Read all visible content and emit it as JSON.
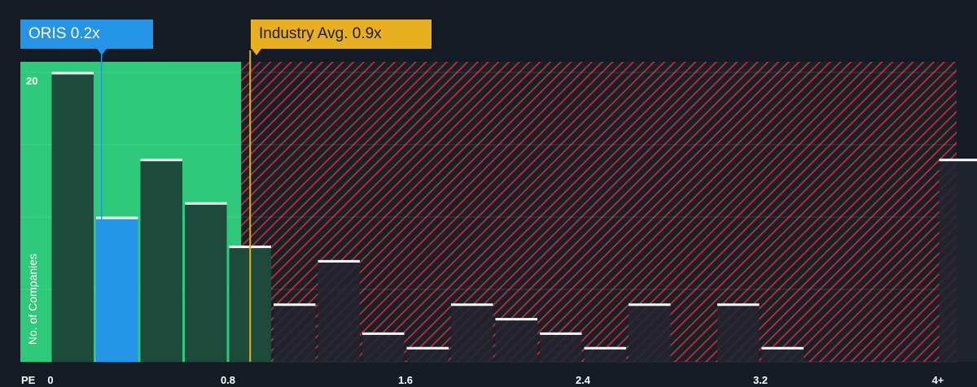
{
  "chart_data": {
    "type": "bar",
    "x_axis_title": "PE",
    "ylabel": "No. of Companies",
    "x_ticks": [
      "0",
      "0.8",
      "1.6",
      "2.4",
      "3.2",
      "4+"
    ],
    "y_ticks": [
      "20"
    ],
    "bins": [
      {
        "start": 0.0,
        "value": 20
      },
      {
        "start": 0.2,
        "value": 10,
        "highlight": true
      },
      {
        "start": 0.4,
        "value": 14
      },
      {
        "start": 0.6,
        "value": 11
      },
      {
        "start": 0.8,
        "value": 8
      },
      {
        "start": 1.0,
        "value": 4
      },
      {
        "start": 1.2,
        "value": 7
      },
      {
        "start": 1.4,
        "value": 2
      },
      {
        "start": 1.6,
        "value": 1
      },
      {
        "start": 1.8,
        "value": 4
      },
      {
        "start": 2.0,
        "value": 3
      },
      {
        "start": 2.2,
        "value": 2
      },
      {
        "start": 2.4,
        "value": 1
      },
      {
        "start": 2.6,
        "value": 4
      },
      {
        "start": 2.8,
        "value": 0
      },
      {
        "start": 3.0,
        "value": 4
      },
      {
        "start": 3.2,
        "value": 1
      },
      {
        "start": 3.4,
        "value": 0
      },
      {
        "start": 3.6,
        "value": 0
      },
      {
        "start": 3.8,
        "value": 0
      },
      {
        "start": 4.0,
        "value": 14
      }
    ],
    "company": {
      "label": "ORIS 0.2x",
      "value": 0.23
    },
    "industry": {
      "label": "Industry Avg. 0.9x",
      "value": 0.9
    },
    "fair_range_max": 0.86,
    "ylim": [
      0,
      20
    ],
    "xlim": [
      0,
      4.0
    ],
    "colors": {
      "background": "#151b24",
      "fair_zone": "#2ec97b",
      "bar_in_fair": "#1d4a3a",
      "bar_overvalued": "#22262f",
      "highlight": "#2394e6",
      "industry": "#e8b01f",
      "hatch": "#c0343f"
    }
  }
}
